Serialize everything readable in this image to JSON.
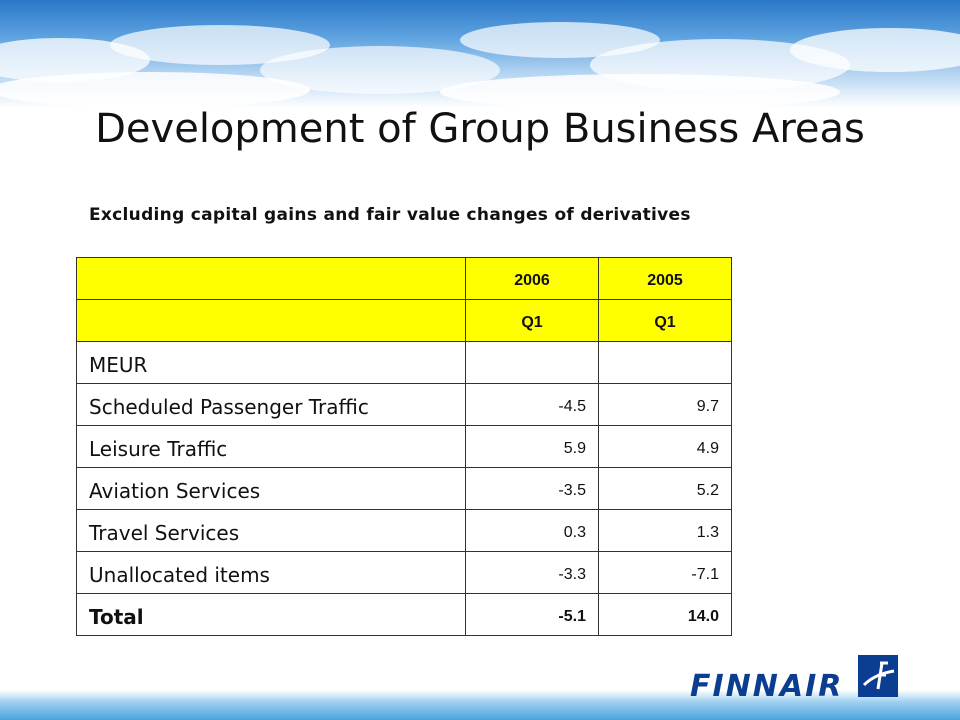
{
  "slide": {
    "title": "Development of Group Business Areas",
    "subtitle": "Excluding capital gains and fair value changes of derivatives"
  },
  "table": {
    "header_years": [
      "2006",
      "2005"
    ],
    "header_quarters": [
      "Q1",
      "Q1"
    ],
    "unit_label": "MEUR",
    "rows": [
      {
        "label": "Scheduled Passenger Traffic",
        "v2006": "-4.5",
        "v2005": "9.7"
      },
      {
        "label": "Leisure Traffic",
        "v2006": "5.9",
        "v2005": "4.9"
      },
      {
        "label": "Aviation Services",
        "v2006": "-3.5",
        "v2005": "5.2"
      },
      {
        "label": "Travel Services",
        "v2006": "0.3",
        "v2005": "1.3"
      },
      {
        "label": "Unallocated items",
        "v2006": "-3.3",
        "v2005": "-7.1"
      }
    ],
    "total": {
      "label": "Total",
      "v2006": "-5.1",
      "v2005": "14.0"
    }
  },
  "branding": {
    "logo_text": "FINNAIR",
    "logo_icon": "finnair-f-mark-icon",
    "brand_color": "#0b3d91",
    "header_highlight_color": "#ffff00"
  }
}
